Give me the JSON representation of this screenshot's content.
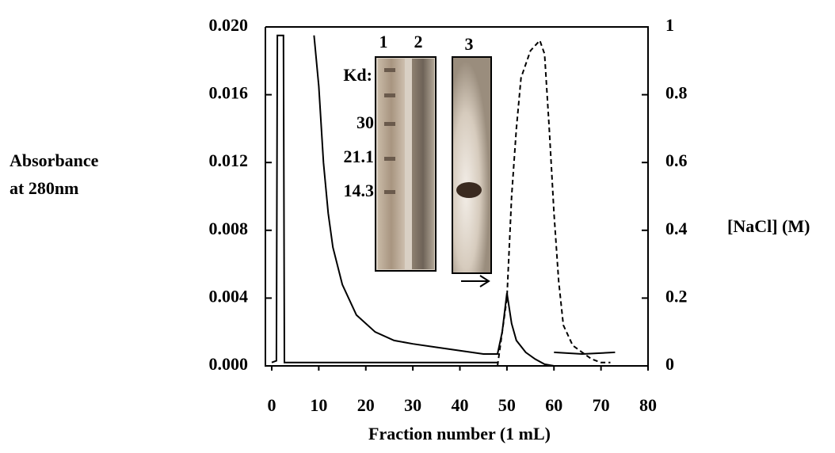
{
  "chart_data": {
    "type": "line",
    "xlabel": "Fraction number (1 mL)",
    "ylabel": [
      "Absorbance",
      "at 280nm"
    ],
    "y2label": "[NaCl] (M)",
    "xlim": [
      0,
      80
    ],
    "xticks": [
      0,
      10,
      20,
      30,
      40,
      50,
      60,
      70,
      80
    ],
    "ylim": [
      0,
      0.02
    ],
    "yticks": [
      {
        "value": 0,
        "label": "0.000"
      },
      {
        "value": 0.004,
        "label": "0.004"
      },
      {
        "value": 0.008,
        "label": "0.008"
      },
      {
        "value": 0.012,
        "label": "0.012"
      },
      {
        "value": 0.016,
        "label": "0.016"
      },
      {
        "value": 0.02,
        "label": "0.020"
      }
    ],
    "y2lim": [
      0,
      1
    ],
    "y2ticks": [
      0,
      0.2,
      0.4,
      0.6,
      0.8,
      1
    ],
    "series": [
      {
        "color": "#000000",
        "dash": false,
        "x": [
          0,
          1,
          1.2,
          2.5,
          2.7,
          48,
          null,
          9,
          10,
          11,
          12,
          13,
          15,
          18,
          22,
          26,
          30,
          35,
          40,
          45,
          48,
          49,
          50,
          51,
          52,
          54,
          56,
          58,
          60,
          null,
          60,
          66,
          73
        ],
        "values": [
          0.0002,
          0.0003,
          0.0195,
          0.0195,
          0.0002,
          0.0002,
          null,
          0.0195,
          0.0165,
          0.012,
          0.009,
          0.007,
          0.0048,
          0.003,
          0.002,
          0.0015,
          0.0013,
          0.0011,
          0.0009,
          0.0007,
          0.0007,
          0.002,
          0.0043,
          0.0025,
          0.0015,
          0.0008,
          0.0004,
          0.0001,
          0,
          null,
          0.0008,
          0.0007,
          0.0008
        ]
      },
      {
        "color": "#000000",
        "dash": true,
        "axis": "y2",
        "x": [
          48,
          50,
          51,
          52,
          53,
          55,
          57,
          58,
          59,
          60,
          61,
          62,
          64,
          66,
          68,
          70,
          72
        ],
        "values": [
          0,
          0.2,
          0.5,
          0.7,
          0.85,
          0.93,
          0.96,
          0.92,
          0.7,
          0.45,
          0.25,
          0.12,
          0.06,
          0.04,
          0.02,
          0.01,
          0.01
        ]
      }
    ],
    "inset": {
      "lanes": [
        "1",
        "2",
        "3"
      ],
      "marker_title": "Kd:",
      "markers": [
        "30",
        "21.1",
        "14.3"
      ]
    }
  }
}
